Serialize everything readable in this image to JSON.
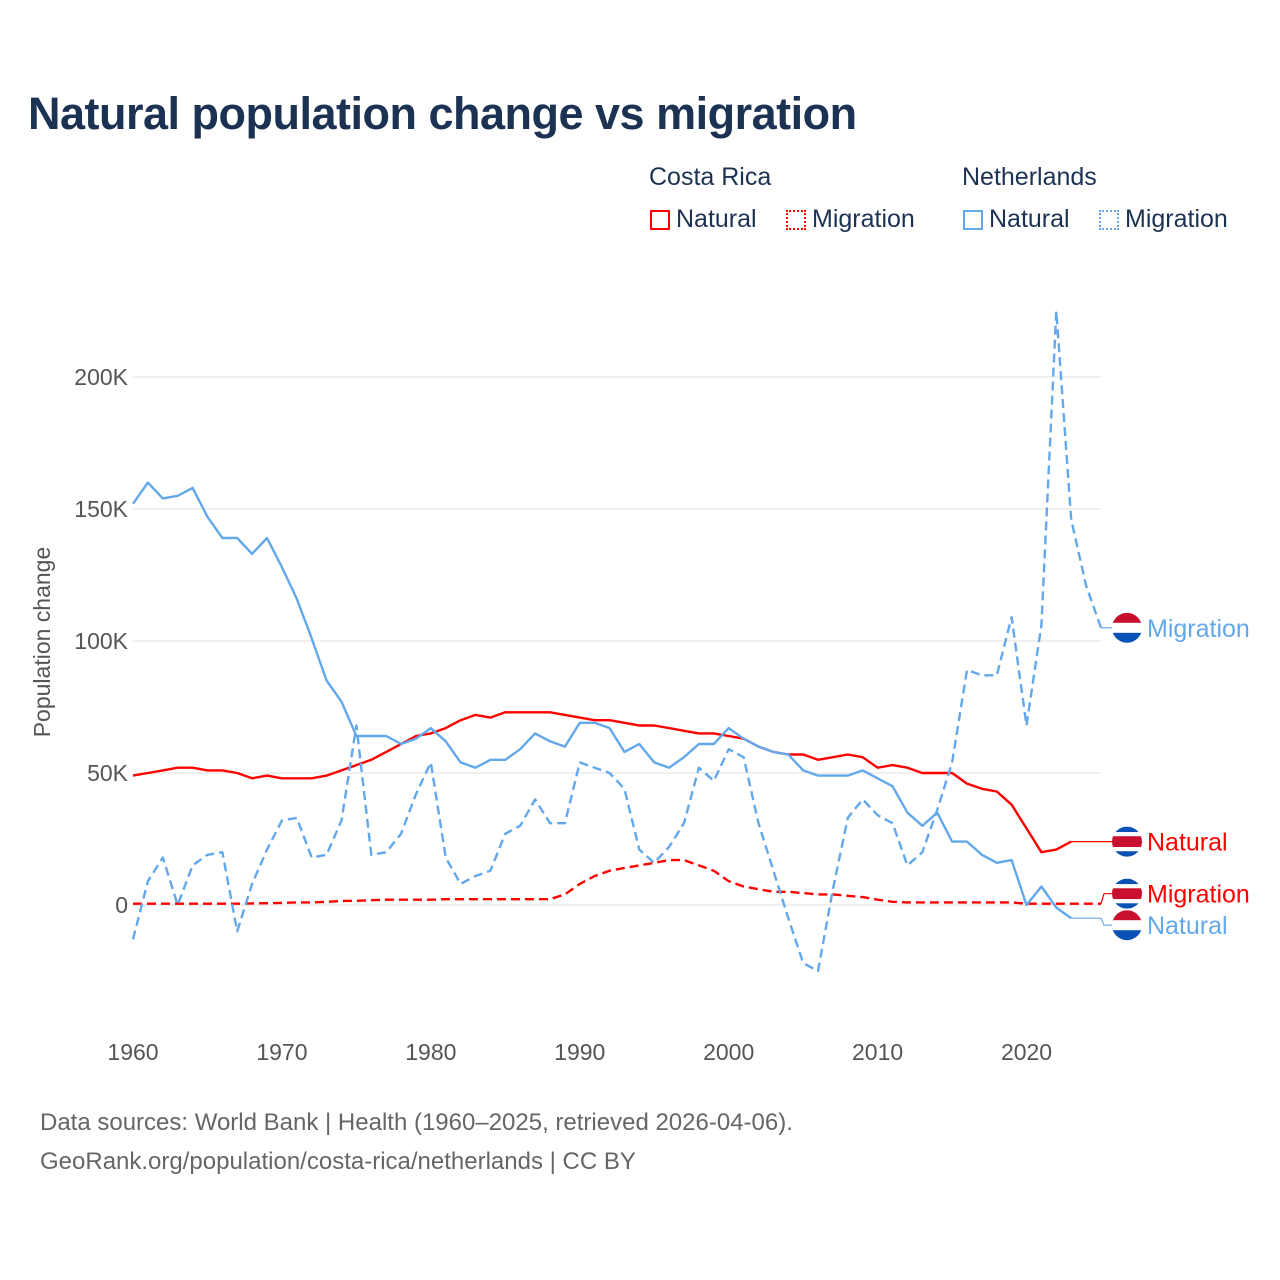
{
  "title": "Natural population change vs migration",
  "legend": {
    "groups": [
      {
        "country": "Costa Rica",
        "items": [
          {
            "label": "Natural",
            "style": "solid",
            "color": "#ff0000"
          },
          {
            "label": "Migration",
            "style": "dotted",
            "color": "#ff0000"
          }
        ]
      },
      {
        "country": "Netherlands",
        "items": [
          {
            "label": "Natural",
            "style": "solid",
            "color": "#63a8eb"
          },
          {
            "label": "Migration",
            "style": "dotted",
            "color": "#63a8eb"
          }
        ]
      }
    ]
  },
  "chart_data": {
    "type": "line",
    "title": "Natural population change vs migration",
    "xlabel": "",
    "ylabel": "Population change",
    "xlim": [
      1960,
      2025
    ],
    "ylim": [
      -40000,
      225000
    ],
    "x_ticks": [
      1960,
      1970,
      1980,
      1990,
      2000,
      2010,
      2020
    ],
    "y_ticks": [
      {
        "value": 0,
        "label": "0"
      },
      {
        "value": 50000,
        "label": "50K"
      },
      {
        "value": 100000,
        "label": "100K"
      },
      {
        "value": 150000,
        "label": "150K"
      },
      {
        "value": 200000,
        "label": "200K"
      }
    ],
    "grid": true,
    "legend_position": "top-right",
    "series": [
      {
        "name": "Costa Rica Natural",
        "end_label": "Natural",
        "country": "Costa Rica",
        "color": "#ff0000",
        "dash": "solid",
        "start_year": 1960,
        "values_k": [
          49,
          50,
          51,
          52,
          52,
          51,
          51,
          50,
          48,
          49,
          48,
          48,
          48,
          49,
          51,
          53,
          55,
          58,
          61,
          64,
          65,
          67,
          70,
          72,
          71,
          73,
          73,
          73,
          73,
          72,
          71,
          70,
          70,
          69,
          68,
          68,
          67,
          66,
          65,
          65,
          64,
          63,
          60,
          58,
          57,
          57,
          55,
          56,
          57,
          56,
          52,
          53,
          52,
          50,
          50,
          50,
          46,
          44,
          43,
          38,
          29,
          20,
          21,
          24
        ]
      },
      {
        "name": "Costa Rica Migration",
        "end_label": "Migration",
        "country": "Costa Rica",
        "color": "#ff0000",
        "dash": "dashed",
        "start_year": 1960,
        "values_k": [
          0.5,
          0.5,
          0.5,
          0.5,
          0.5,
          0.5,
          0.5,
          0.5,
          0.6,
          0.7,
          0.8,
          1,
          1,
          1.2,
          1.5,
          1.6,
          1.8,
          2,
          2,
          2,
          2,
          2.2,
          2.2,
          2.2,
          2.2,
          2.2,
          2.2,
          2.2,
          2.2,
          4,
          8,
          11,
          13,
          14,
          15,
          16,
          17,
          17,
          15,
          13,
          9,
          7,
          6,
          5,
          5,
          4.5,
          4,
          4,
          3.5,
          3,
          2,
          1.2,
          1,
          1,
          1,
          1,
          1,
          1,
          1,
          1,
          0.5,
          0.5,
          0.5,
          0.5,
          0.5,
          0.5
        ]
      },
      {
        "name": "Netherlands Natural",
        "end_label": "Natural",
        "country": "Netherlands",
        "color": "#63a8eb",
        "dash": "solid",
        "start_year": 1960,
        "values_k": [
          152,
          160,
          154,
          155,
          158,
          147,
          139,
          139,
          133,
          139,
          128,
          116,
          101,
          85,
          77,
          64,
          64,
          64,
          61,
          63,
          67,
          62,
          54,
          52,
          55,
          55,
          59,
          65,
          62,
          60,
          69,
          69,
          67,
          58,
          61,
          54,
          52,
          56,
          61,
          61,
          67,
          63,
          60,
          58,
          57,
          51,
          49,
          49,
          49,
          51,
          48,
          45,
          35,
          30,
          35,
          24,
          24,
          19,
          16,
          17,
          0,
          7,
          -1,
          -5
        ]
      },
      {
        "name": "Netherlands Migration",
        "end_label": "Migration",
        "country": "Netherlands",
        "color": "#63a8eb",
        "dash": "dashed",
        "start_year": 1960,
        "values_k": [
          -13,
          9,
          18,
          0,
          15,
          19,
          20,
          -10,
          8,
          21,
          32,
          33,
          18,
          19,
          32,
          68,
          19,
          20,
          27,
          42,
          54,
          18,
          8,
          11,
          13,
          27,
          30,
          40,
          31,
          31,
          54,
          52,
          50,
          44,
          21,
          16,
          22,
          31,
          52,
          47,
          59,
          56,
          31,
          13,
          -5,
          -22,
          -25,
          6,
          33,
          40,
          34,
          31,
          15,
          20,
          36,
          54,
          89,
          87,
          87,
          109,
          68,
          106,
          225,
          146,
          121,
          105
        ]
      }
    ]
  },
  "footer": {
    "line1": "Data sources: World Bank | Health (1960–2025, retrieved 2026-04-06).",
    "line2": "GeoRank.org/population/costa-rica/netherlands | CC BY"
  }
}
